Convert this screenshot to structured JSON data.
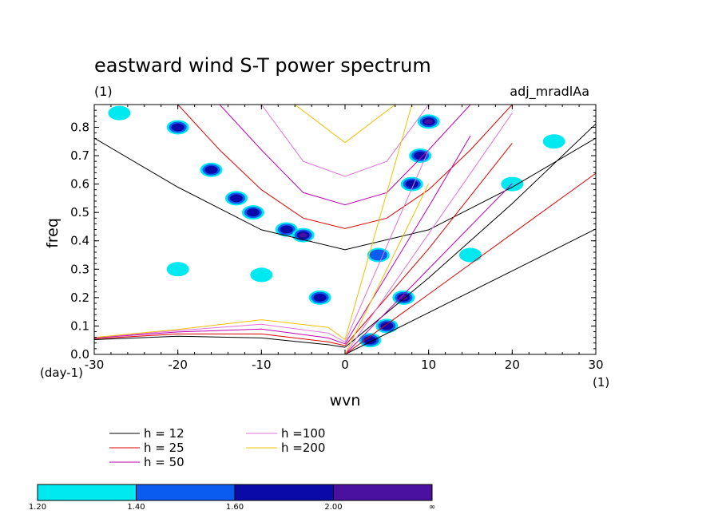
{
  "chart_data": {
    "type": "heatmap",
    "title": "eastward wind S-T power spectrum",
    "subtitle_left": "(1)",
    "subtitle_right": "adj_mradlAa",
    "xlabel": "wvn",
    "ylabel": "freq",
    "x_units": "(1)",
    "y_units": "(day-1)",
    "xlim": [
      -30,
      30
    ],
    "ylim": [
      0,
      0.88
    ],
    "x_ticks": [
      -30,
      -20,
      -10,
      0,
      10,
      20,
      30
    ],
    "x_tick_labels": [
      "-30",
      "-20",
      "-10",
      "0",
      "10",
      "20",
      "30"
    ],
    "y_ticks": [
      0,
      0.1,
      0.2,
      0.3,
      0.4,
      0.5,
      0.6,
      0.7,
      0.8
    ],
    "y_tick_labels": [
      "0.0",
      "0.1",
      "0.2",
      "0.3",
      "0.4",
      "0.5",
      "0.6",
      "0.7",
      "0.8"
    ],
    "color_levels": {
      "bounds": [
        "1.20",
        "1.40",
        "1.60",
        "2.00",
        "∞"
      ],
      "colors": [
        "#00e8f0",
        "#0a5cf0",
        "#0a0aa8",
        "#4a10a0"
      ]
    },
    "series": [
      {
        "name": "h = 12",
        "h": 12,
        "color": "#000000"
      },
      {
        "name": "h = 25",
        "h": 25,
        "color": "#e00000"
      },
      {
        "name": "h = 50",
        "h": 50,
        "color": "#c000b0"
      },
      {
        "name": "h =100",
        "h": 100,
        "color": "#e070d8"
      },
      {
        "name": "h =200",
        "h": 200,
        "color": "#f0c000"
      }
    ],
    "dispersion_curves": [
      {
        "h": 12,
        "color": "#000000",
        "kelvin": [
          [
            0,
            0
          ],
          [
            10,
            0.147
          ],
          [
            20,
            0.294
          ],
          [
            30,
            0.442
          ]
        ],
        "mrg": [
          [
            -30,
            0.052
          ],
          [
            -20,
            0.064
          ],
          [
            -10,
            0.058
          ],
          [
            -2,
            0.034
          ],
          [
            0,
            0.025
          ]
        ],
        "ig": [
          [
            -30,
            0.762
          ],
          [
            -20,
            0.589
          ],
          [
            -10,
            0.439
          ],
          [
            0,
            0.369
          ],
          [
            10,
            0.439
          ],
          [
            20,
            0.589
          ],
          [
            30,
            0.762
          ]
        ],
        "eig": [
          [
            0,
            0.025
          ],
          [
            10,
            0.269
          ],
          [
            20,
            0.531
          ],
          [
            30,
            0.812
          ]
        ]
      },
      {
        "h": 25,
        "color": "#e00000",
        "kelvin": [
          [
            0,
            0
          ],
          [
            10,
            0.212
          ],
          [
            20,
            0.425
          ],
          [
            30,
            0.638
          ]
        ],
        "mrg": [
          [
            -30,
            0.055
          ],
          [
            -20,
            0.072
          ],
          [
            -10,
            0.072
          ],
          [
            -2,
            0.044
          ],
          [
            0,
            0.031
          ]
        ],
        "ig": [
          [
            -20,
            0.88
          ],
          [
            -15,
            0.72
          ],
          [
            -10,
            0.58
          ],
          [
            -5,
            0.48
          ],
          [
            0,
            0.443
          ],
          [
            5,
            0.48
          ],
          [
            10,
            0.58
          ],
          [
            15,
            0.72
          ],
          [
            20,
            0.88
          ]
        ],
        "eig": [
          [
            0,
            0.031
          ],
          [
            10,
            0.372
          ],
          [
            20,
            0.744
          ]
        ]
      },
      {
        "h": 50,
        "color": "#c000b0",
        "kelvin": [
          [
            0,
            0
          ],
          [
            10,
            0.301
          ],
          [
            20,
            0.602
          ]
        ],
        "mrg": [
          [
            -30,
            0.058
          ],
          [
            -20,
            0.079
          ],
          [
            -10,
            0.089
          ],
          [
            -2,
            0.058
          ],
          [
            0,
            0.037
          ]
        ],
        "ig": [
          [
            -15,
            0.88
          ],
          [
            -10,
            0.72
          ],
          [
            -5,
            0.57
          ],
          [
            0,
            0.527
          ],
          [
            5,
            0.57
          ],
          [
            10,
            0.72
          ],
          [
            15,
            0.88
          ]
        ],
        "eig": [
          [
            0,
            0.037
          ],
          [
            10,
            0.52
          ],
          [
            15,
            0.77
          ]
        ]
      },
      {
        "h": 100,
        "color": "#e070d8",
        "kelvin": [
          [
            0,
            0
          ],
          [
            10,
            0.425
          ],
          [
            20,
            0.85
          ]
        ],
        "mrg": [
          [
            -30,
            0.059
          ],
          [
            -20,
            0.084
          ],
          [
            -10,
            0.106
          ],
          [
            -2,
            0.075
          ],
          [
            0,
            0.044
          ]
        ],
        "ig": [
          [
            -10,
            0.88
          ],
          [
            -5,
            0.68
          ],
          [
            0,
            0.627
          ],
          [
            5,
            0.68
          ],
          [
            10,
            0.88
          ]
        ],
        "eig": [
          [
            0,
            0.044
          ],
          [
            10,
            0.72
          ]
        ]
      },
      {
        "h": 200,
        "color": "#f0c000",
        "kelvin": [
          [
            0,
            0
          ],
          [
            5,
            0.3
          ],
          [
            10,
            0.601
          ]
        ],
        "mrg": [
          [
            -30,
            0.06
          ],
          [
            -20,
            0.088
          ],
          [
            -10,
            0.122
          ],
          [
            -2,
            0.095
          ],
          [
            0,
            0.052
          ]
        ],
        "ig": [
          [
            -6,
            0.88
          ],
          [
            0,
            0.746
          ],
          [
            6,
            0.88
          ]
        ],
        "eig": [
          [
            0,
            0.052
          ],
          [
            8,
            0.88
          ]
        ]
      }
    ],
    "power_regions": [
      {
        "x": -13,
        "y": 0.55,
        "level": 3
      },
      {
        "x": -11,
        "y": 0.5,
        "level": 3
      },
      {
        "x": -7,
        "y": 0.44,
        "level": 3
      },
      {
        "x": -5,
        "y": 0.42,
        "level": 4
      },
      {
        "x": -16,
        "y": 0.65,
        "level": 3
      },
      {
        "x": -20,
        "y": 0.8,
        "level": 3
      },
      {
        "x": 8,
        "y": 0.6,
        "level": 3
      },
      {
        "x": 9,
        "y": 0.7,
        "level": 3
      },
      {
        "x": 10,
        "y": 0.82,
        "level": 4
      },
      {
        "x": 7,
        "y": 0.2,
        "level": 4
      },
      {
        "x": 5,
        "y": 0.1,
        "level": 3
      },
      {
        "x": 3,
        "y": 0.05,
        "level": 3
      },
      {
        "x": -3,
        "y": 0.2,
        "level": 3
      },
      {
        "x": 4,
        "y": 0.35,
        "level": 2
      },
      {
        "x": 20,
        "y": 0.6,
        "level": 1
      },
      {
        "x": 25,
        "y": 0.75,
        "level": 1
      },
      {
        "x": -27,
        "y": 0.85,
        "level": 1
      },
      {
        "x": -10,
        "y": 0.28,
        "level": 1
      },
      {
        "x": 15,
        "y": 0.35,
        "level": 1
      },
      {
        "x": -20,
        "y": 0.3,
        "level": 1
      }
    ]
  },
  "legend": {
    "left": [
      "h = 12",
      "h = 25",
      "h = 50"
    ],
    "right": [
      "h =100",
      "h =200"
    ]
  }
}
